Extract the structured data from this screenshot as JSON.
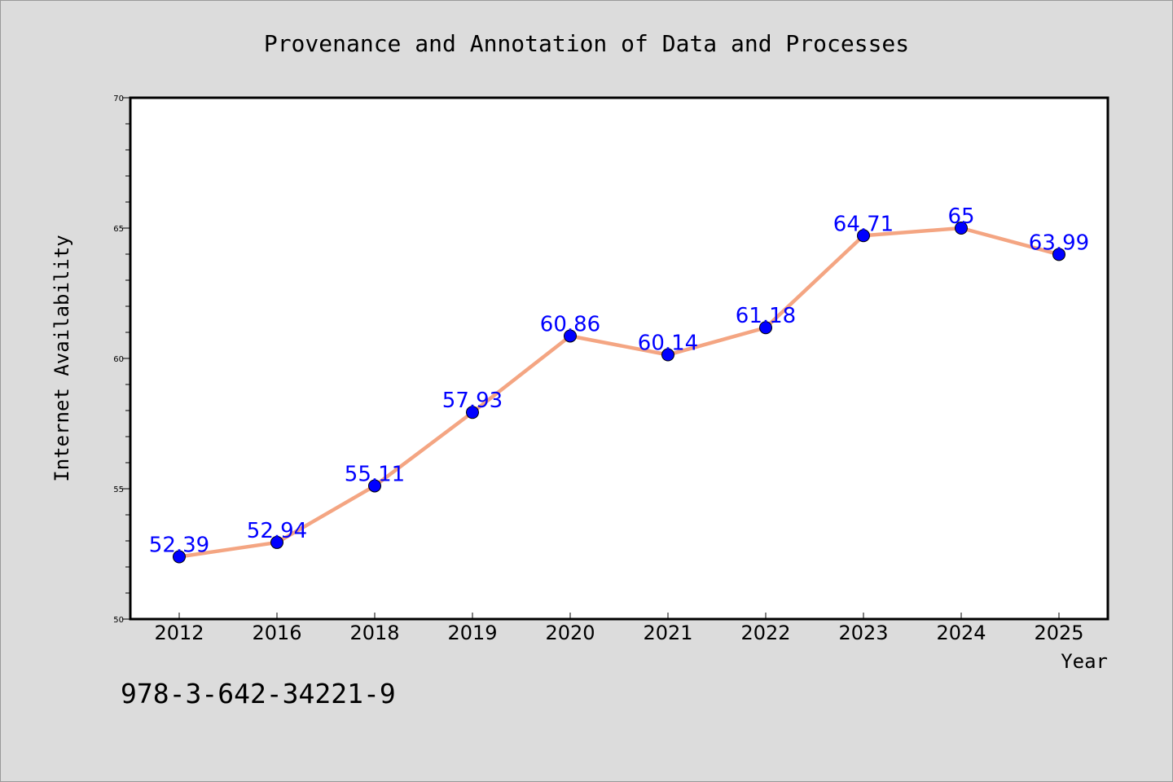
{
  "chart_data": {
    "type": "line",
    "title": "Provenance and Annotation of Data and Processes",
    "xlabel": "Year",
    "ylabel": "Internet Availability",
    "categories": [
      "2012",
      "2016",
      "2018",
      "2019",
      "2020",
      "2021",
      "2022",
      "2023",
      "2024",
      "2025"
    ],
    "values": [
      52.39,
      52.94,
      55.11,
      57.93,
      60.86,
      60.14,
      61.18,
      64.71,
      65,
      63.99
    ],
    "data_labels": [
      "52.39",
      "52.94",
      "55.11",
      "57.93",
      "60.86",
      "60.14",
      "61.18",
      "64.71",
      "65",
      "63.99"
    ],
    "ylim": [
      50,
      70
    ],
    "yticks": [
      "50",
      "55",
      "60",
      "65",
      "70"
    ],
    "grid": false,
    "line_color": "#f4a582",
    "marker_color": "#0000ff",
    "label_color": "#0000ff"
  },
  "footer": {
    "isbn": "978-3-642-34221-9"
  }
}
